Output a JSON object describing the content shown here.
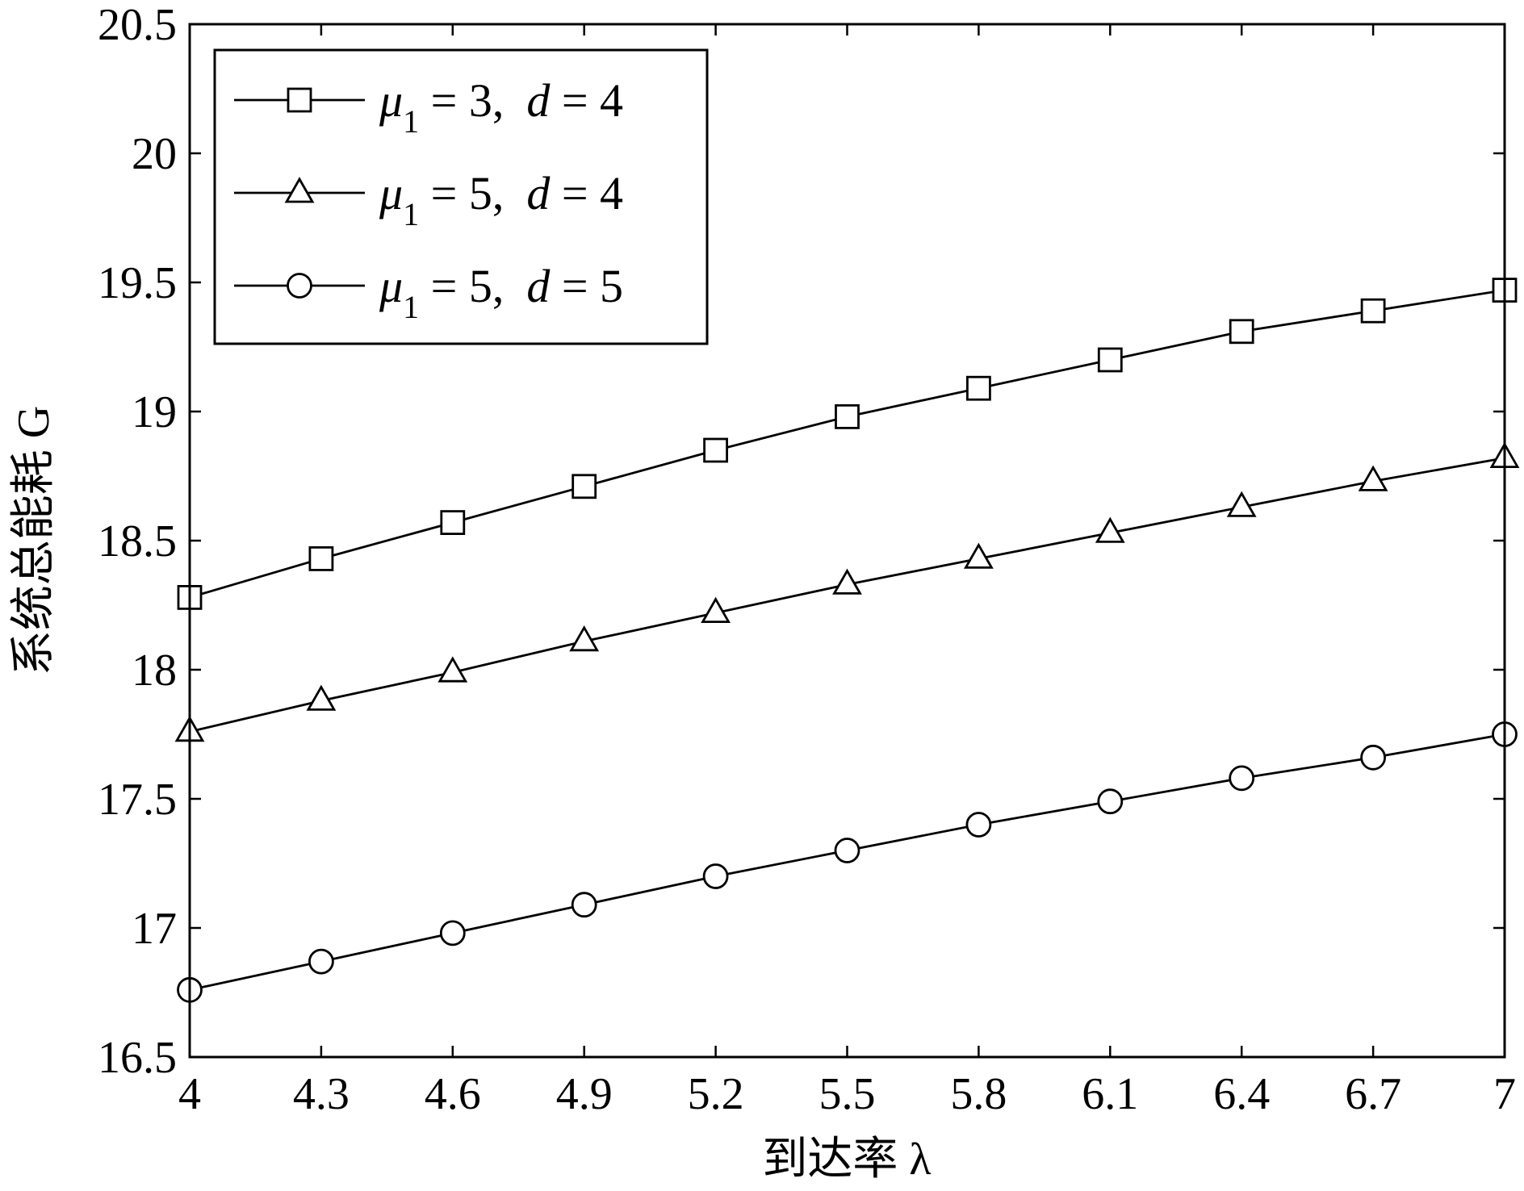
{
  "chart_data": {
    "type": "line",
    "xlabel": "到达率 λ",
    "ylabel": "系统总能耗 G",
    "x": [
      4,
      4.3,
      4.6,
      4.9,
      5.2,
      5.5,
      5.8,
      6.1,
      6.4,
      6.7,
      7
    ],
    "xlim": [
      4,
      7
    ],
    "ylim": [
      16.5,
      20.5
    ],
    "xticks": [
      "4",
      "4.3",
      "4.6",
      "4.9",
      "5.2",
      "5.5",
      "5.8",
      "6.1",
      "6.4",
      "6.7",
      "7"
    ],
    "yticks": [
      "16.5",
      "17",
      "17.5",
      "18",
      "18.5",
      "19",
      "19.5",
      "20",
      "20.5"
    ],
    "grid": false,
    "legend_position": "top-left",
    "series": [
      {
        "name": "μ1 = 3, d = 4",
        "legend": {
          "mu": "μ",
          "sub": "1",
          "eq1": " = 3,",
          "d": "d",
          "eq2": " = 4"
        },
        "marker": "square",
        "values": [
          18.28,
          18.43,
          18.57,
          18.71,
          18.85,
          18.98,
          19.09,
          19.2,
          19.31,
          19.39,
          19.47
        ]
      },
      {
        "name": "μ1 = 5, d = 4",
        "legend": {
          "mu": "μ",
          "sub": "1",
          "eq1": " = 5,",
          "d": "d",
          "eq2": " = 4"
        },
        "marker": "triangle",
        "values": [
          17.76,
          17.88,
          17.99,
          18.11,
          18.22,
          18.33,
          18.43,
          18.53,
          18.63,
          18.73,
          18.82
        ]
      },
      {
        "name": "μ1 = 5, d = 5",
        "legend": {
          "mu": "μ",
          "sub": "1",
          "eq1": " = 5,",
          "d": "d",
          "eq2": " = 5"
        },
        "marker": "circle",
        "values": [
          16.76,
          16.87,
          16.98,
          17.09,
          17.2,
          17.3,
          17.4,
          17.49,
          17.58,
          17.66,
          17.75
        ]
      }
    ],
    "colors": {
      "line": "#000000",
      "background": "#ffffff"
    }
  }
}
